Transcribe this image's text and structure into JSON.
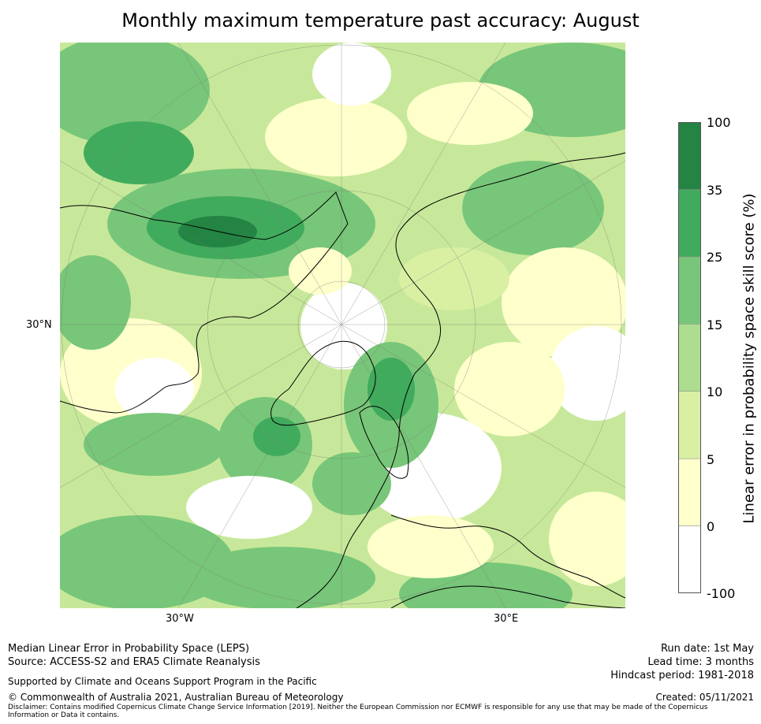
{
  "title": "Monthly maximum temperature past accuracy: August",
  "map": {
    "latitude_label": "30°N",
    "longitude_labels": [
      "30°W",
      "30°E"
    ]
  },
  "colorbar": {
    "label": "Linear error in probability space skill score (%)",
    "ticks": [
      "100",
      "35",
      "25",
      "15",
      "10",
      "5",
      "0",
      "-100"
    ],
    "colors": [
      "#ffffff",
      "#ffffcc",
      "#d9f0a3",
      "#addd8e",
      "#78c679",
      "#41ab5d",
      "#238443"
    ]
  },
  "footer": {
    "line1": "Median Linear Error in Probability Space (LEPS)",
    "line2": "Source: ACCESS-S2 and ERA5 Climate Reanalysis",
    "support": "Supported by Climate and Oceans Support Program in the Pacific",
    "copyright": "© Commonwealth of Australia 2021, Australian Bureau of Meteorology",
    "disclaimer": "Disclaimer: Contains modified Copernicus Climate Change Service Information [2019]. Neither the European Commission nor ECMWF is responsible for any use that may be made of the Copernicus Information or Data it contains.",
    "run_date": "Run date: 1st May",
    "lead_time": "Lead time: 3 months",
    "hindcast": "Hindcast period: 1981-2018",
    "created": "Created: 05/11/2021"
  }
}
